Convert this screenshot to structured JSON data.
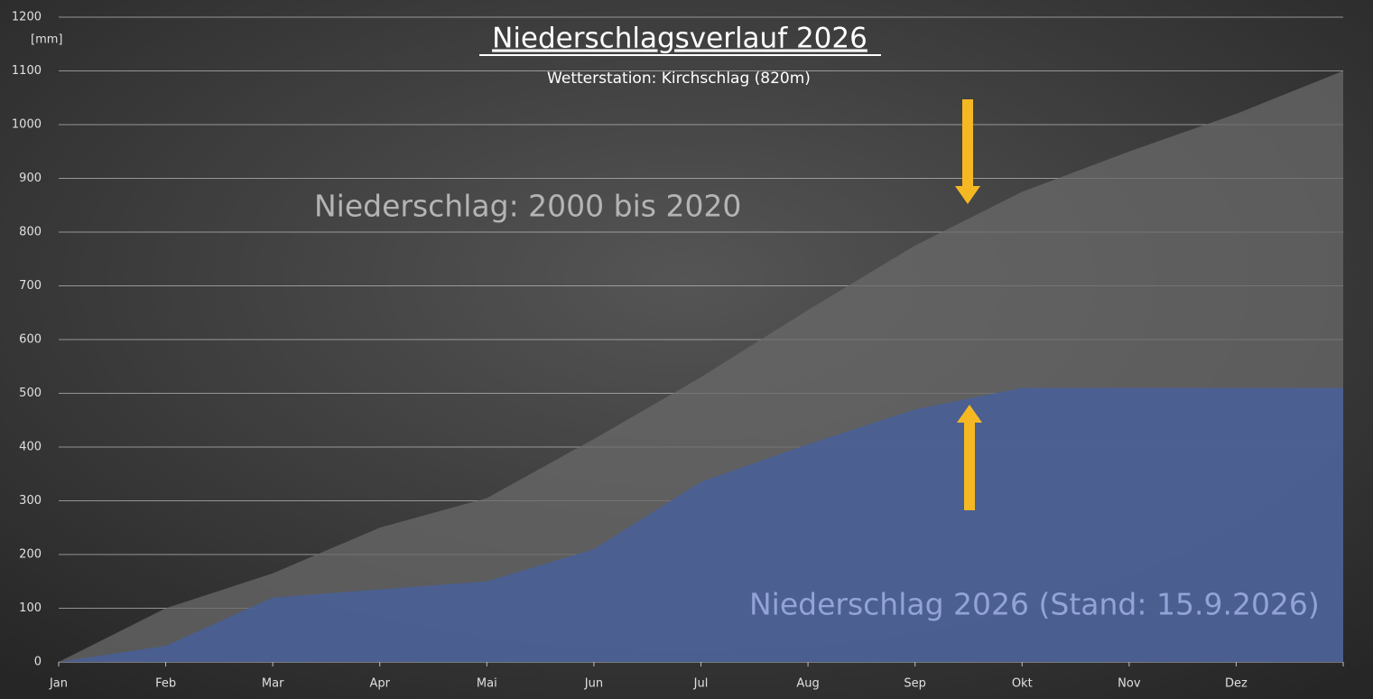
{
  "chart_data": {
    "type": "area",
    "title": "Niederschlagsverlauf 2026",
    "subtitle": "Wetterstation: Kirchschlag (820m)",
    "y_label": "[mm]",
    "categories": [
      "Jan",
      "Feb",
      "Mar",
      "Apr",
      "Mai",
      "Jun",
      "Jul",
      "Aug",
      "Sep",
      "Okt",
      "Nov",
      "Dez",
      null
    ],
    "series": [
      {
        "name": "Niederschlag: 2000 bis 2020",
        "color": "#6a6a6a",
        "values": [
          0,
          100,
          165,
          250,
          305,
          415,
          530,
          655,
          775,
          875,
          950,
          1020,
          1100
        ]
      },
      {
        "name": "Niederschlag 2026 (Stand: 15.9.2026)",
        "color": "#4a5f94",
        "values": [
          0,
          30,
          120,
          135,
          150,
          210,
          335,
          405,
          470,
          510,
          510,
          510,
          510
        ]
      }
    ],
    "ylim": [
      0,
      1200
    ],
    "yticks": [
      0,
      100,
      200,
      300,
      400,
      500,
      600,
      700,
      800,
      900,
      1000,
      1100,
      1200
    ],
    "grid": true
  }
}
